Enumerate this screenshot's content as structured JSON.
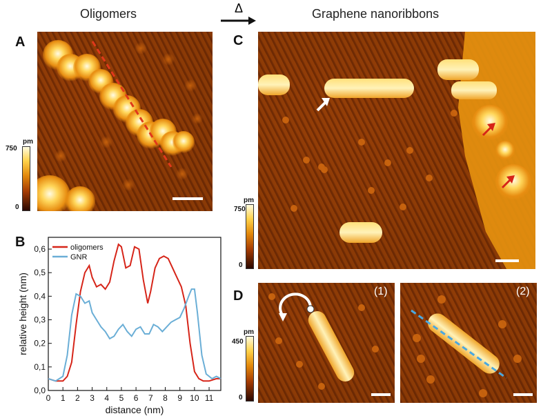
{
  "titles": {
    "left": "Oligomers",
    "delta": "Δ",
    "right": "Graphene nanoribbons"
  },
  "panels": {
    "a": "A",
    "b": "B",
    "c": "C",
    "d": "D",
    "d1": "(1)",
    "d2": "(2)"
  },
  "colorbars": {
    "a": {
      "unit": "pm",
      "max": "750",
      "min": "0"
    },
    "c": {
      "unit": "pm",
      "max": "750",
      "min": "0"
    },
    "d": {
      "unit": "pm",
      "max": "450",
      "min": "0"
    }
  },
  "colors": {
    "oligomers": "#d62418",
    "gnr": "#6aaed6",
    "profile_line_a": "#e0391b",
    "profile_line_d": "#4aa8e0"
  },
  "chart_data": {
    "type": "line",
    "title": "",
    "xlabel": "distance (nm)",
    "ylabel": "relative height (nm)",
    "xlim": [
      0,
      11.8
    ],
    "ylim": [
      0,
      0.65
    ],
    "xticks": [
      "0",
      "1",
      "2",
      "3",
      "4",
      "5",
      "6",
      "7",
      "8",
      "9",
      "10",
      "11"
    ],
    "yticks": [
      "0,0",
      "0,1",
      "0,2",
      "0,3",
      "0,4",
      "0,5",
      "0,6"
    ],
    "legend_position": "top-left",
    "series": [
      {
        "name": "oligomers",
        "x": [
          0,
          0.5,
          1.0,
          1.3,
          1.6,
          1.9,
          2.2,
          2.5,
          2.8,
          3.0,
          3.3,
          3.6,
          3.9,
          4.2,
          4.5,
          4.8,
          5.0,
          5.3,
          5.6,
          5.9,
          6.2,
          6.5,
          6.8,
          7.0,
          7.3,
          7.6,
          7.9,
          8.2,
          8.5,
          8.8,
          9.1,
          9.4,
          9.7,
          10.0,
          10.3,
          10.6,
          11.0,
          11.5,
          11.8
        ],
        "values": [
          0.05,
          0.04,
          0.04,
          0.06,
          0.12,
          0.28,
          0.42,
          0.5,
          0.53,
          0.48,
          0.44,
          0.45,
          0.43,
          0.46,
          0.55,
          0.62,
          0.61,
          0.52,
          0.53,
          0.61,
          0.6,
          0.47,
          0.37,
          0.42,
          0.52,
          0.56,
          0.57,
          0.56,
          0.52,
          0.48,
          0.44,
          0.36,
          0.2,
          0.08,
          0.05,
          0.04,
          0.04,
          0.05,
          0.05
        ]
      },
      {
        "name": "GNR",
        "x": [
          0,
          0.5,
          1.0,
          1.3,
          1.6,
          1.9,
          2.2,
          2.5,
          2.8,
          3.0,
          3.3,
          3.6,
          3.9,
          4.2,
          4.5,
          4.8,
          5.1,
          5.4,
          5.7,
          6.0,
          6.3,
          6.6,
          6.9,
          7.2,
          7.5,
          7.8,
          8.1,
          8.4,
          8.7,
          9.0,
          9.3,
          9.6,
          9.8,
          10.0,
          10.2,
          10.5,
          10.8,
          11.2,
          11.5,
          11.8
        ],
        "values": [
          0.05,
          0.04,
          0.06,
          0.15,
          0.32,
          0.41,
          0.4,
          0.37,
          0.38,
          0.33,
          0.3,
          0.27,
          0.25,
          0.22,
          0.23,
          0.26,
          0.28,
          0.25,
          0.23,
          0.26,
          0.27,
          0.24,
          0.24,
          0.28,
          0.27,
          0.25,
          0.27,
          0.29,
          0.3,
          0.31,
          0.35,
          0.4,
          0.43,
          0.43,
          0.33,
          0.15,
          0.07,
          0.05,
          0.06,
          0.05
        ]
      }
    ]
  }
}
